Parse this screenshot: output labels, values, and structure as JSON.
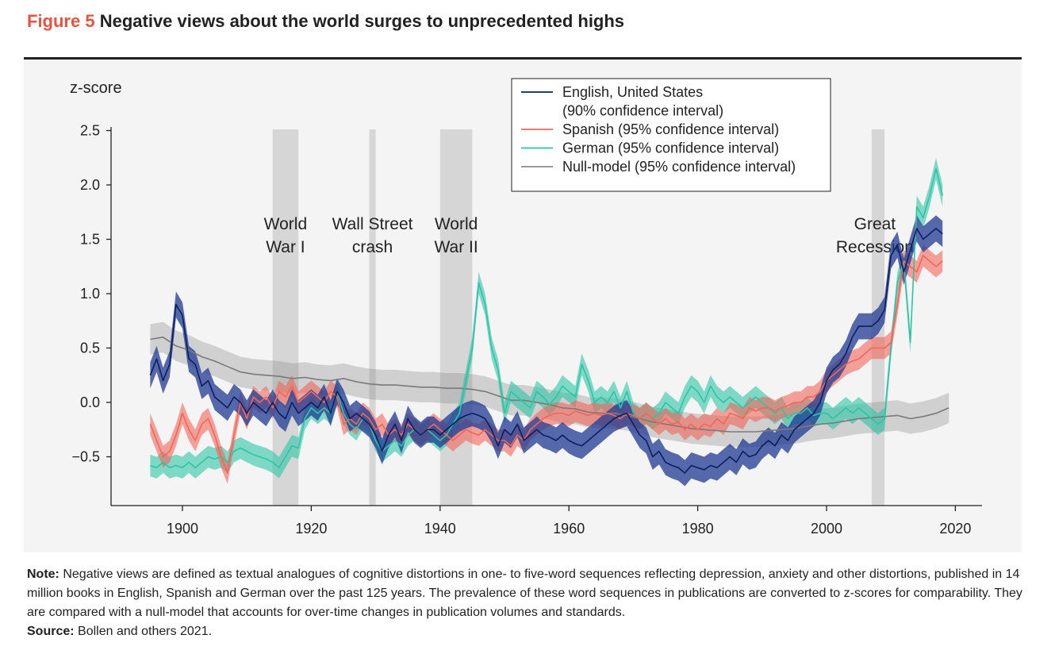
{
  "figure": {
    "number": "Figure 5",
    "title": "Negative views about the world surges to unprecedented highs"
  },
  "note": {
    "label": "Note:",
    "text": "Negative views are defined as textual analogues of cognitive distortions in one- to five-word sequences reflecting depression, anxiety and other distortions, published in 14 million books in English, Spanish and German over the past 125 years. The prevalence of these word sequences in publications are converted to z-scores for comparability. They are compared with a null-model that accounts for over-time changes in publication volumes and standards."
  },
  "source": {
    "label": "Source:",
    "text": "Bollen and others 2021."
  },
  "colors": {
    "english": "#1f3a93",
    "spanish": "#f2665a",
    "german": "#2ec4a6",
    "null": "#8c8c8c",
    "title_accent": "#e8533f",
    "shade": "#d6d6d6"
  },
  "chart_data": {
    "type": "line",
    "ylabel": "z-score",
    "xlim": [
      1888,
      2024
    ],
    "ylim": [
      -0.95,
      2.6
    ],
    "x_ticks": [
      1900,
      1920,
      1940,
      1960,
      1980,
      2000,
      2020
    ],
    "y_ticks": [
      {
        "value": 2.5,
        "label": "2.5"
      },
      {
        "value": 2.0,
        "label": "2.0"
      },
      {
        "value": 1.5,
        "label": "1.5"
      },
      {
        "value": 1.0,
        "label": "1.0"
      },
      {
        "value": 0.5,
        "label": "0.5"
      },
      {
        "value": 0.0,
        "label": "0.0"
      },
      {
        "value": -0.5,
        "label": "−0.5"
      }
    ],
    "events": [
      {
        "lines": [
          "World",
          "War I"
        ],
        "start": 1914,
        "end": 1918,
        "label_x": 1916
      },
      {
        "lines": [
          "Wall Street",
          "crash"
        ],
        "start": 1929,
        "end": 1930,
        "label_x": 1929.5
      },
      {
        "lines": [
          "World",
          "War II"
        ],
        "start": 1940,
        "end": 1945,
        "label_x": 1942.5
      },
      {
        "lines": [
          "Great",
          "Recession"
        ],
        "start": 2007,
        "end": 2009,
        "label_x": 2007.5
      }
    ],
    "legend": {
      "placement": "top-right",
      "entries": [
        {
          "key": "english",
          "lines": [
            "English, United States",
            "(90% confidence interval)"
          ]
        },
        {
          "key": "spanish",
          "lines": [
            "Spanish (95% confidence interval)"
          ]
        },
        {
          "key": "german",
          "lines": [
            "German (95% confidence interval)"
          ]
        },
        {
          "key": "null",
          "lines": [
            "Null-model (95% confidence interval)"
          ]
        }
      ]
    },
    "series": [
      {
        "key": "english",
        "band": 0.12,
        "x": [
          1895,
          1896,
          1897,
          1898,
          1899,
          1900,
          1901,
          1902,
          1903,
          1904,
          1905,
          1906,
          1907,
          1908,
          1909,
          1910,
          1911,
          1912,
          1913,
          1914,
          1915,
          1916,
          1917,
          1918,
          1919,
          1920,
          1921,
          1922,
          1923,
          1924,
          1925,
          1926,
          1927,
          1928,
          1929,
          1930,
          1931,
          1932,
          1933,
          1934,
          1935,
          1936,
          1937,
          1938,
          1939,
          1940,
          1941,
          1942,
          1943,
          1944,
          1945,
          1946,
          1947,
          1948,
          1949,
          1950,
          1951,
          1952,
          1953,
          1954,
          1955,
          1956,
          1957,
          1958,
          1959,
          1960,
          1961,
          1962,
          1963,
          1964,
          1965,
          1966,
          1967,
          1968,
          1969,
          1970,
          1971,
          1972,
          1973,
          1974,
          1975,
          1976,
          1977,
          1978,
          1979,
          1980,
          1981,
          1982,
          1983,
          1984,
          1985,
          1986,
          1987,
          1988,
          1989,
          1990,
          1991,
          1992,
          1993,
          1994,
          1995,
          1996,
          1997,
          1998,
          1999,
          2000,
          2001,
          2002,
          2003,
          2004,
          2005,
          2006,
          2007,
          2008,
          2009,
          2010,
          2011,
          2012,
          2013,
          2014,
          2015,
          2016,
          2017,
          2018
        ],
        "y": [
          0.25,
          0.4,
          0.2,
          0.35,
          0.9,
          0.8,
          0.4,
          0.35,
          0.15,
          0.2,
          0.05,
          0.0,
          -0.05,
          0.05,
          0.0,
          -0.1,
          0.0,
          -0.05,
          -0.1,
          0.0,
          -0.1,
          -0.15,
          0.0,
          -0.1,
          -0.05,
          0.0,
          -0.05,
          0.05,
          -0.1,
          0.1,
          0.0,
          -0.15,
          -0.1,
          -0.15,
          -0.2,
          -0.3,
          -0.45,
          -0.3,
          -0.2,
          -0.35,
          -0.15,
          -0.25,
          -0.3,
          -0.25,
          -0.25,
          -0.3,
          -0.25,
          -0.2,
          -0.15,
          -0.12,
          -0.1,
          -0.12,
          -0.15,
          -0.25,
          -0.4,
          -0.25,
          -0.3,
          -0.2,
          -0.35,
          -0.3,
          -0.25,
          -0.3,
          -0.32,
          -0.35,
          -0.3,
          -0.35,
          -0.38,
          -0.4,
          -0.35,
          -0.3,
          -0.25,
          -0.2,
          -0.15,
          -0.12,
          -0.1,
          -0.2,
          -0.3,
          -0.35,
          -0.5,
          -0.45,
          -0.55,
          -0.58,
          -0.6,
          -0.65,
          -0.58,
          -0.6,
          -0.62,
          -0.58,
          -0.6,
          -0.55,
          -0.5,
          -0.55,
          -0.45,
          -0.5,
          -0.48,
          -0.4,
          -0.35,
          -0.4,
          -0.3,
          -0.35,
          -0.25,
          -0.2,
          -0.15,
          -0.1,
          0.0,
          0.2,
          0.3,
          0.35,
          0.45,
          0.6,
          0.7,
          0.7,
          0.7,
          0.75,
          0.85,
          1.35,
          1.45,
          1.2,
          1.4,
          1.6,
          1.5,
          1.55,
          1.6,
          1.55
        ]
      },
      {
        "key": "spanish",
        "band": 0.1,
        "x": [
          1895,
          1896,
          1897,
          1898,
          1899,
          1900,
          1901,
          1902,
          1903,
          1904,
          1905,
          1906,
          1907,
          1908,
          1909,
          1910,
          1911,
          1912,
          1913,
          1914,
          1915,
          1916,
          1917,
          1918,
          1919,
          1920,
          1921,
          1922,
          1923,
          1924,
          1925,
          1926,
          1927,
          1928,
          1929,
          1930,
          1931,
          1932,
          1933,
          1934,
          1935,
          1936,
          1937,
          1938,
          1939,
          1940,
          1941,
          1942,
          1943,
          1944,
          1945,
          1946,
          1947,
          1948,
          1949,
          1950,
          1951,
          1952,
          1953,
          1954,
          1955,
          1956,
          1957,
          1958,
          1959,
          1960,
          1961,
          1962,
          1963,
          1964,
          1965,
          1966,
          1967,
          1968,
          1969,
          1970,
          1971,
          1972,
          1973,
          1974,
          1975,
          1976,
          1977,
          1978,
          1979,
          1980,
          1981,
          1982,
          1983,
          1984,
          1985,
          1986,
          1987,
          1988,
          1989,
          1990,
          1991,
          1992,
          1993,
          1994,
          1995,
          1996,
          1997,
          1998,
          1999,
          2000,
          2001,
          2002,
          2003,
          2004,
          2005,
          2006,
          2007,
          2008,
          2009,
          2010,
          2011,
          2012,
          2013,
          2014,
          2015,
          2016,
          2017,
          2018
        ],
        "y": [
          -0.2,
          -0.35,
          -0.5,
          -0.45,
          -0.3,
          -0.1,
          -0.25,
          -0.35,
          -0.2,
          -0.15,
          -0.3,
          -0.5,
          -0.65,
          -0.3,
          0.0,
          -0.15,
          0.05,
          0.0,
          0.05,
          -0.05,
          0.1,
          0.05,
          0.15,
          0.0,
          0.05,
          0.1,
          0.05,
          0.0,
          0.1,
          0.05,
          -0.2,
          -0.15,
          -0.2,
          -0.1,
          -0.15,
          -0.25,
          -0.2,
          -0.3,
          -0.25,
          -0.3,
          -0.2,
          -0.25,
          -0.3,
          -0.25,
          -0.2,
          -0.25,
          -0.3,
          -0.35,
          -0.3,
          -0.25,
          -0.28,
          -0.3,
          -0.25,
          -0.3,
          -0.35,
          -0.35,
          -0.4,
          -0.3,
          -0.35,
          -0.25,
          -0.2,
          -0.15,
          -0.12,
          -0.1,
          -0.1,
          -0.12,
          -0.08,
          -0.1,
          -0.12,
          -0.1,
          -0.12,
          -0.1,
          -0.12,
          -0.15,
          -0.1,
          -0.12,
          -0.15,
          -0.1,
          -0.15,
          -0.2,
          -0.15,
          -0.2,
          -0.18,
          -0.25,
          -0.2,
          -0.25,
          -0.2,
          -0.22,
          -0.15,
          -0.2,
          -0.1,
          -0.12,
          -0.15,
          -0.05,
          -0.08,
          -0.05,
          -0.05,
          -0.08,
          -0.05,
          -0.03,
          0.0,
          0.0,
          0.05,
          0.05,
          0.1,
          0.2,
          0.25,
          0.3,
          0.35,
          0.38,
          0.4,
          0.45,
          0.5,
          0.5,
          0.5,
          0.55,
          0.9,
          1.3,
          1.25,
          1.2,
          1.35,
          1.3,
          1.25,
          1.3
        ]
      },
      {
        "key": "german",
        "band": 0.1,
        "x": [
          1895,
          1896,
          1897,
          1898,
          1899,
          1900,
          1901,
          1902,
          1903,
          1904,
          1905,
          1906,
          1907,
          1908,
          1909,
          1910,
          1911,
          1912,
          1913,
          1914,
          1915,
          1916,
          1917,
          1918,
          1919,
          1920,
          1921,
          1922,
          1923,
          1924,
          1925,
          1926,
          1927,
          1928,
          1929,
          1930,
          1931,
          1932,
          1933,
          1934,
          1935,
          1936,
          1937,
          1938,
          1939,
          1940,
          1941,
          1942,
          1943,
          1944,
          1945,
          1946,
          1947,
          1948,
          1949,
          1950,
          1951,
          1952,
          1953,
          1954,
          1955,
          1956,
          1957,
          1958,
          1959,
          1960,
          1961,
          1962,
          1963,
          1964,
          1965,
          1966,
          1967,
          1968,
          1969,
          1970,
          1971,
          1972,
          1973,
          1974,
          1975,
          1976,
          1977,
          1978,
          1979,
          1980,
          1981,
          1982,
          1983,
          1984,
          1985,
          1986,
          1987,
          1988,
          1989,
          1990,
          1991,
          1992,
          1993,
          1994,
          1995,
          1996,
          1997,
          1998,
          1999,
          2000,
          2001,
          2002,
          2003,
          2004,
          2005,
          2006,
          2007,
          2008,
          2009,
          2010,
          2011,
          2012,
          2013,
          2014,
          2015,
          2016,
          2017,
          2018
        ],
        "y": [
          -0.58,
          -0.6,
          -0.55,
          -0.6,
          -0.58,
          -0.6,
          -0.55,
          -0.6,
          -0.55,
          -0.5,
          -0.52,
          -0.5,
          -0.55,
          -0.45,
          -0.42,
          -0.45,
          -0.48,
          -0.5,
          -0.52,
          -0.55,
          -0.6,
          -0.5,
          -0.4,
          -0.42,
          -0.15,
          -0.05,
          -0.1,
          -0.05,
          -0.1,
          0.1,
          -0.1,
          -0.2,
          -0.25,
          -0.15,
          -0.2,
          -0.35,
          -0.45,
          -0.4,
          -0.35,
          -0.4,
          -0.3,
          -0.25,
          -0.3,
          -0.25,
          -0.3,
          -0.35,
          -0.3,
          -0.2,
          -0.1,
          0.2,
          0.5,
          1.1,
          0.9,
          0.5,
          0.3,
          -0.1,
          0.1,
          0.05,
          0.0,
          -0.05,
          0.1,
          0.05,
          -0.02,
          0.05,
          0.15,
          0.1,
          0.05,
          0.35,
          0.2,
          0.0,
          0.05,
          0.0,
          0.1,
          -0.05,
          0.1,
          -0.1,
          -0.15,
          -0.1,
          -0.15,
          -0.1,
          0.0,
          -0.05,
          -0.1,
          0.05,
          0.15,
          0.1,
          0.0,
          0.15,
          0.05,
          0.0,
          0.05,
          0.0,
          -0.05,
          0.0,
          0.05,
          0.0,
          -0.05,
          -0.1,
          -0.05,
          -0.15,
          -0.1,
          -0.1,
          -0.05,
          -0.12,
          -0.1,
          -0.1,
          -0.15,
          -0.1,
          -0.05,
          -0.1,
          -0.05,
          -0.1,
          -0.15,
          -0.2,
          -0.15,
          0.5,
          1.1,
          1.3,
          0.55,
          1.8,
          1.7,
          1.9,
          2.15,
          1.9
        ]
      },
      {
        "key": "null",
        "band": 0.14,
        "x": [
          1895,
          1897,
          1899,
          1901,
          1903,
          1905,
          1907,
          1909,
          1911,
          1913,
          1915,
          1917,
          1919,
          1921,
          1923,
          1925,
          1927,
          1929,
          1931,
          1933,
          1935,
          1937,
          1939,
          1941,
          1943,
          1945,
          1947,
          1949,
          1951,
          1953,
          1955,
          1957,
          1959,
          1961,
          1963,
          1965,
          1967,
          1969,
          1971,
          1973,
          1975,
          1977,
          1979,
          1981,
          1983,
          1985,
          1987,
          1989,
          1991,
          1993,
          1995,
          1997,
          1999,
          2001,
          2003,
          2005,
          2007,
          2009,
          2011,
          2013,
          2015,
          2017,
          2019
        ],
        "y": [
          0.58,
          0.6,
          0.52,
          0.48,
          0.42,
          0.38,
          0.33,
          0.28,
          0.26,
          0.25,
          0.24,
          0.22,
          0.23,
          0.21,
          0.2,
          0.22,
          0.19,
          0.17,
          0.16,
          0.16,
          0.15,
          0.14,
          0.14,
          0.13,
          0.13,
          0.12,
          0.1,
          0.06,
          0.02,
          0.02,
          0.0,
          -0.02,
          -0.05,
          -0.06,
          -0.09,
          -0.1,
          -0.1,
          -0.12,
          -0.15,
          -0.18,
          -0.2,
          -0.22,
          -0.24,
          -0.25,
          -0.26,
          -0.27,
          -0.27,
          -0.27,
          -0.26,
          -0.25,
          -0.24,
          -0.22,
          -0.2,
          -0.19,
          -0.17,
          -0.15,
          -0.14,
          -0.13,
          -0.12,
          -0.15,
          -0.13,
          -0.1,
          -0.05
        ]
      }
    ]
  }
}
